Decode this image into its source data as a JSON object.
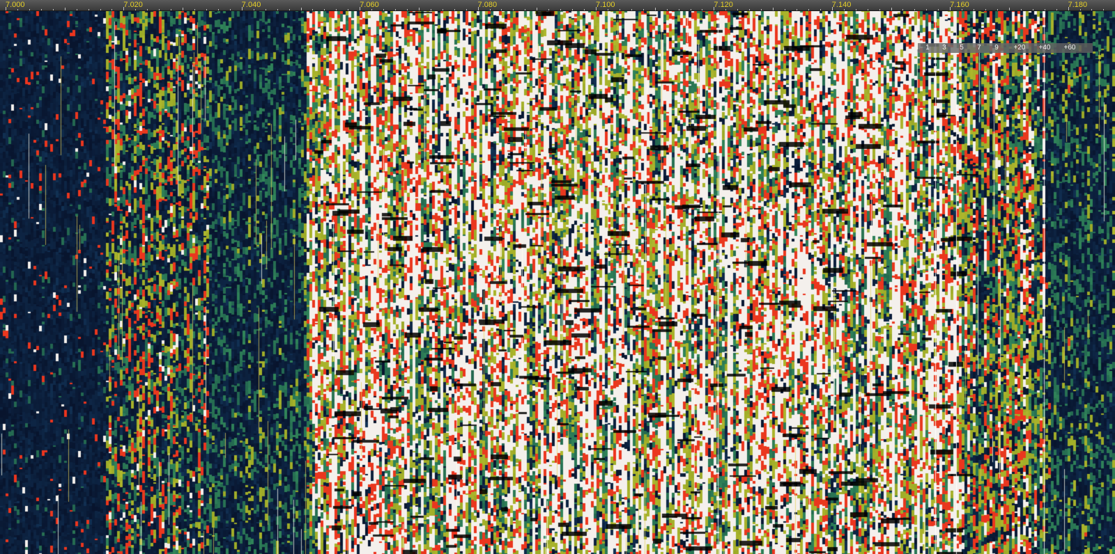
{
  "frequency_scale": {
    "labels": [
      "7.000",
      "7.020",
      "7.040",
      "7.060",
      "7.080",
      "7.100",
      "7.120",
      "7.140",
      "7.160",
      "7.180"
    ]
  },
  "level_scale": {
    "labels": [
      "1",
      "3",
      "5",
      "7",
      "9",
      "+20",
      "+40",
      "+60"
    ]
  },
  "palette": {
    "background": "#02040a",
    "low": "#0b1a3a",
    "mid": "#2f8a5a",
    "high": "#9ab82a",
    "hot": "#e0502a",
    "peak": "#ffffff",
    "scale_text": "#e6d028"
  }
}
